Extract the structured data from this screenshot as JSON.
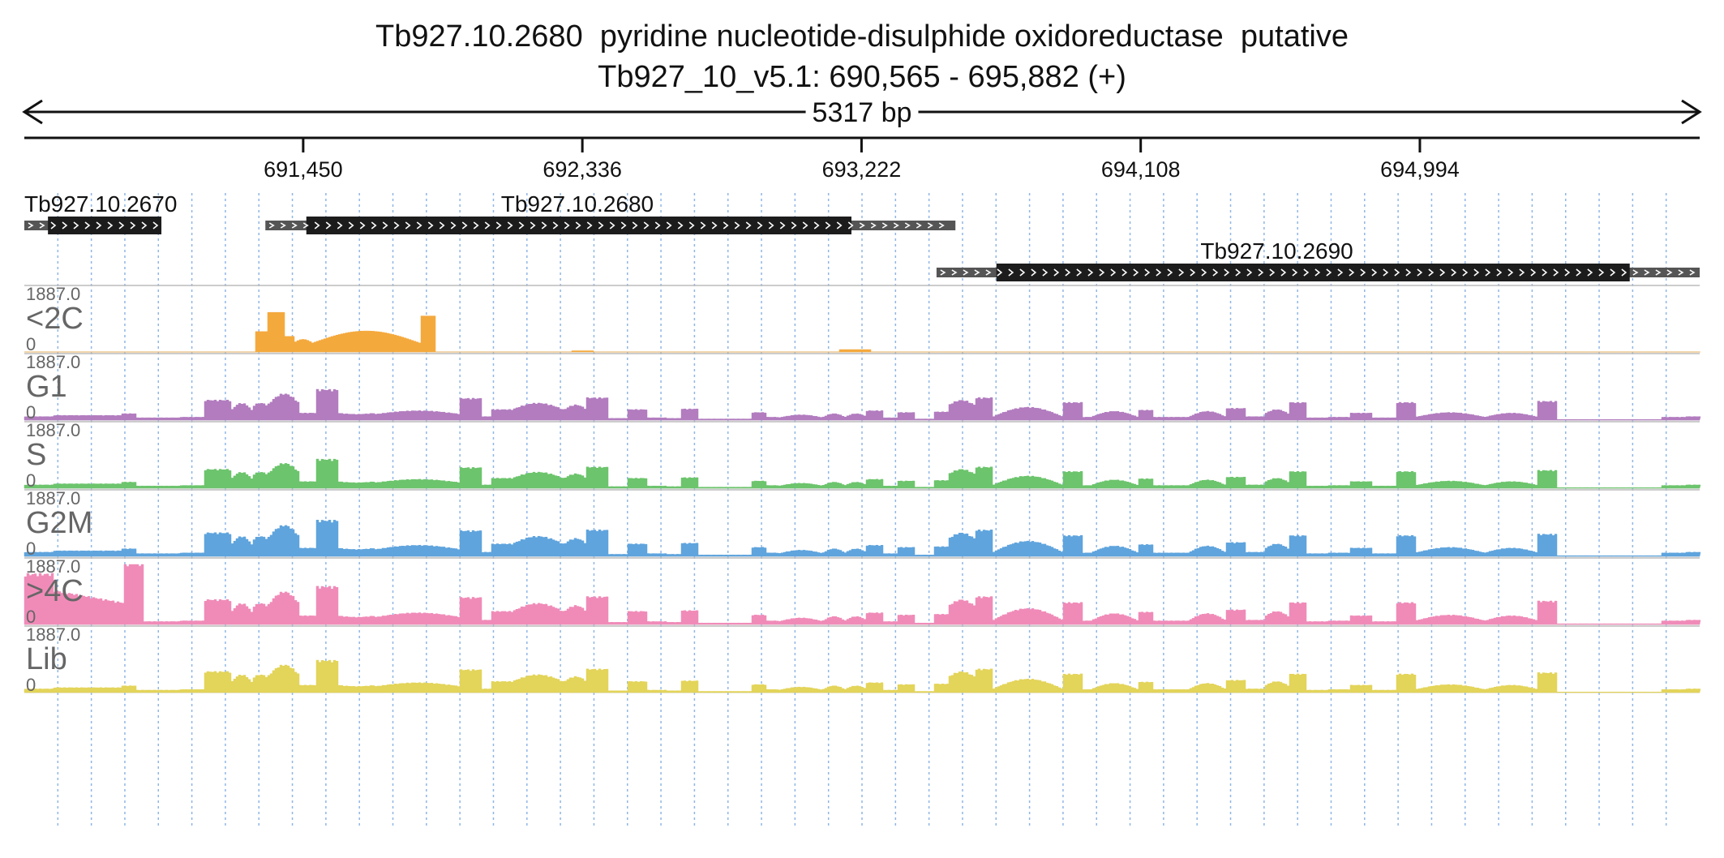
{
  "header": {
    "title": "Tb927.10.2680  pyridine nucleotide-disulphide oxidoreductase  putative",
    "location": "Tb927_10_v5.1: 690,565 - 695,882 (+)"
  },
  "ruler": {
    "span_label": "5317 bp",
    "start": 690565,
    "end": 695882,
    "ticks": [
      {
        "pos": 691450,
        "label": "691,450"
      },
      {
        "pos": 692336,
        "label": "692,336"
      },
      {
        "pos": 693222,
        "label": "693,222"
      },
      {
        "pos": 694108,
        "label": "694,108"
      },
      {
        "pos": 694994,
        "label": "694,994"
      }
    ]
  },
  "genes": [
    {
      "name": "Tb927.10.2670",
      "row": 0,
      "utr_start": 690565,
      "cds_start": 690640,
      "cds_end": 691000,
      "utr_end": 691000,
      "label_pos": 690565
    },
    {
      "name": "Tb927.10.2680",
      "row": 0,
      "utr_start": 691330,
      "cds_start": 691460,
      "cds_end": 693190,
      "utr_end": 693520,
      "label_pos": 692320
    },
    {
      "name": "Tb927.10.2690",
      "row": 1,
      "utr_start": 693460,
      "cds_start": 693650,
      "cds_end": 695660,
      "utr_end": 695882,
      "label_pos": 694540
    }
  ],
  "tracks": [
    {
      "name": "<2C",
      "max_label": "1887.0",
      "min_label": "0",
      "color": "#f4a93d",
      "profile": "sort"
    },
    {
      "name": "G1",
      "max_label": "1887.0",
      "min_label": "0",
      "color": "#b27cbf",
      "profile": "base",
      "scale": 0.95
    },
    {
      "name": "S",
      "max_label": "1887.0",
      "min_label": "0",
      "color": "#6cc46c",
      "profile": "base",
      "scale": 0.9
    },
    {
      "name": "G2M",
      "max_label": "1887.0",
      "min_label": "0",
      "color": "#5fa4dd",
      "profile": "base",
      "scale": 1.12
    },
    {
      "name": ">4C",
      "max_label": "1887.0",
      "min_label": "0",
      "color": "#f08bb8",
      "profile": "base4c",
      "scale": 1.18
    },
    {
      "name": "Lib",
      "max_label": "1887.0",
      "min_label": "0",
      "color": "#e3d45a",
      "profile": "base",
      "scale": 1.0
    }
  ],
  "colors": {
    "gene_cds": "#1c1c1c",
    "gene_utr": "#555555",
    "grid": "#8fb6e6",
    "separator": "#bbbbbb",
    "track_label": "#666666"
  }
}
